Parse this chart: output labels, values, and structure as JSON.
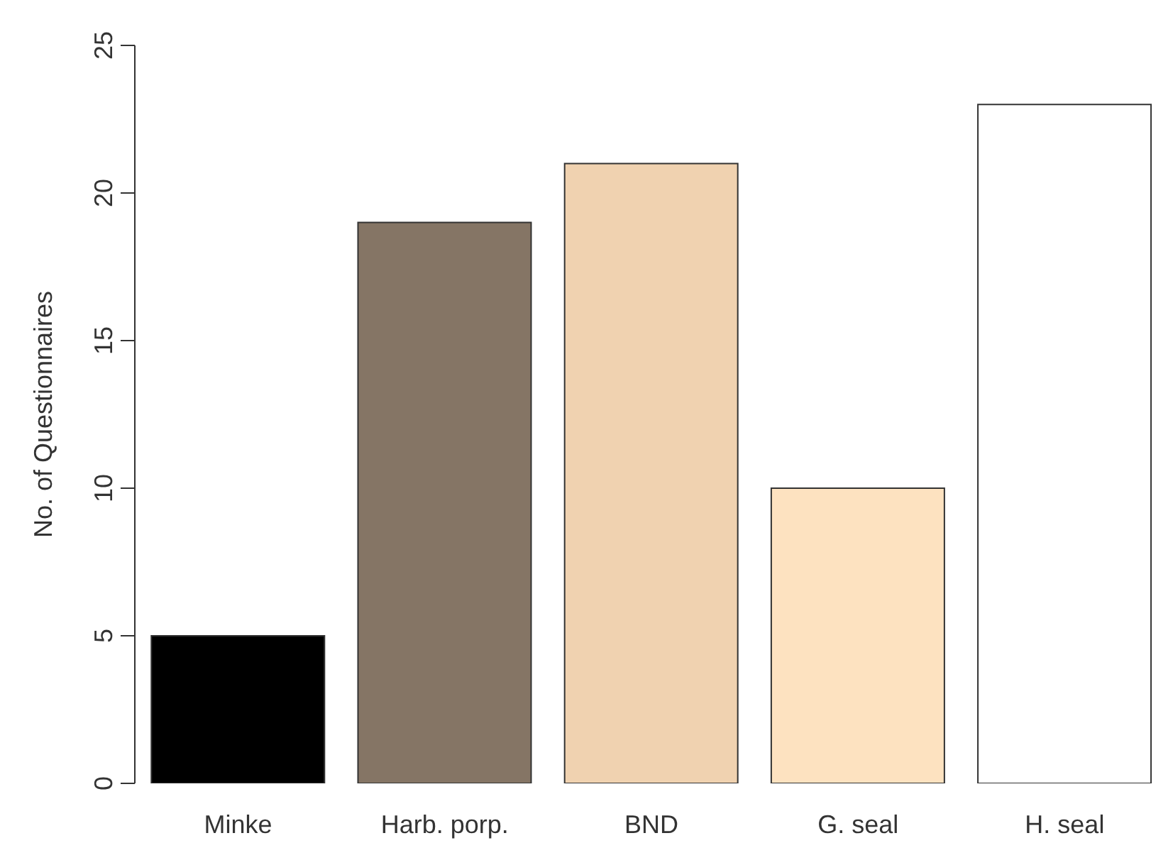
{
  "chart_data": {
    "type": "bar",
    "ylabel": "No. of Questionnaires",
    "categories": [
      "Minke",
      "Harb. porp.",
      "BND",
      "G. seal",
      "H. seal"
    ],
    "values": [
      5,
      19,
      21,
      10,
      23
    ],
    "colors": [
      "#000000",
      "#857565",
      "#f0d2b0",
      "#fde2c0",
      "#ffffff"
    ],
    "ylim": [
      0,
      25
    ],
    "yticks": [
      0,
      5,
      10,
      15,
      20,
      25
    ],
    "grid": false,
    "legend": false
  }
}
